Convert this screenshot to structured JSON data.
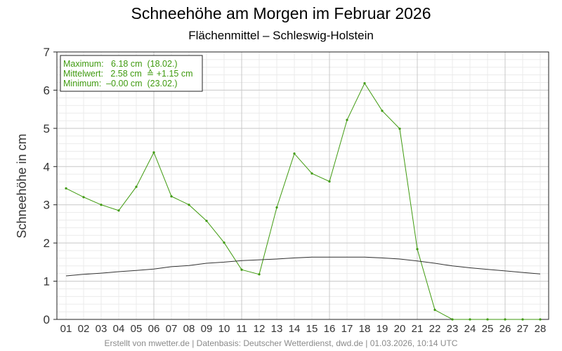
{
  "chart_data": {
    "type": "line",
    "title": "Schneehöhe am Morgen im Februar 2026",
    "subtitle": "Flächenmittel – Schleswig-Holstein",
    "ylabel": "Schneehöhe in cm",
    "xlabel": "",
    "ylim": [
      0,
      7
    ],
    "yticks": [
      "0",
      "1",
      "2",
      "3",
      "4",
      "5",
      "6",
      "7"
    ],
    "categories": [
      "01",
      "02",
      "03",
      "04",
      "05",
      "06",
      "07",
      "08",
      "09",
      "10",
      "11",
      "12",
      "13",
      "14",
      "15",
      "16",
      "17",
      "18",
      "19",
      "20",
      "21",
      "22",
      "23",
      "24",
      "25",
      "26",
      "27",
      "28"
    ],
    "grid": true,
    "series": [
      {
        "color": "#3f9a0f",
        "markers": true,
        "values": [
          3.43,
          3.2,
          3.0,
          2.85,
          3.47,
          4.37,
          3.22,
          3.0,
          2.58,
          2.01,
          1.3,
          1.18,
          2.93,
          4.34,
          3.82,
          3.61,
          5.22,
          6.18,
          5.46,
          4.99,
          1.84,
          0.25,
          0.0,
          0.0,
          0.0,
          0.0,
          0.0,
          0.0
        ]
      },
      {
        "color": "#333333",
        "markers": false,
        "values": [
          1.14,
          1.18,
          1.21,
          1.25,
          1.28,
          1.32,
          1.38,
          1.41,
          1.47,
          1.5,
          1.54,
          1.56,
          1.58,
          1.61,
          1.63,
          1.63,
          1.63,
          1.63,
          1.61,
          1.58,
          1.53,
          1.47,
          1.4,
          1.35,
          1.31,
          1.27,
          1.23,
          1.19
        ]
      }
    ],
    "legend": {
      "placement": "top-left",
      "lines": [
        "Maximum:   6.18 cm  (18.02.)",
        "Mittelwert:   2.58 cm  ≙ +1.15 cm",
        "Minimum:  –0.00 cm  (23.02.)"
      ]
    },
    "footer": "Erstellt von mwetter.de | Datenbasis: Deutscher Wetterdienst, dwd.de | 01.03.2026, 10:14 UTC"
  }
}
